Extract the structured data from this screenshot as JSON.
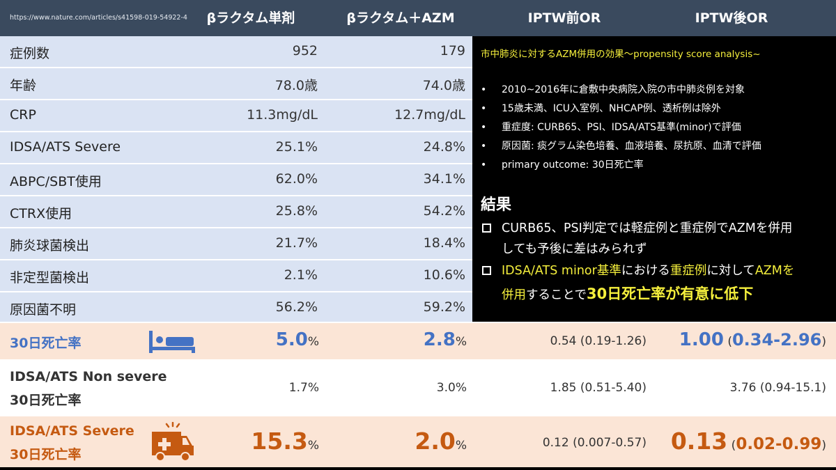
{
  "header": {
    "url": "https://www.nature.com/articles/s41598-019-54922-4",
    "col1": "βラクタム単剤",
    "col2": "βラクタム＋AZM",
    "col3": "IPTW前OR",
    "col4": "IPTW後OR"
  },
  "table_rows": [
    {
      "label": "症例数",
      "mono": "952",
      "combo": "179"
    },
    {
      "label": "年齢",
      "mono": "78.0歳",
      "combo": "74.0歳"
    },
    {
      "label": "CRP",
      "mono": "11.3mg/dL",
      "combo": "12.7mg/dL"
    },
    {
      "label": "IDSA/ATS Severe",
      "mono": "25.1%",
      "combo": "24.8%"
    },
    {
      "label": "ABPC/SBT使用",
      "mono": "62.0%",
      "combo": "34.1%"
    },
    {
      "label": "CTRX使用",
      "mono": "25.8%",
      "combo": "54.2%"
    },
    {
      "label": "肺炎球菌検出",
      "mono": "21.7%",
      "combo": "18.4%"
    },
    {
      "label": "非定型菌検出",
      "mono": "2.1%",
      "combo": "10.6%"
    },
    {
      "label": "原因菌不明",
      "mono": "56.2%",
      "combo": "59.2%"
    }
  ],
  "summary": {
    "title": "市中肺炎に対するAZM併用の効果〜propensity score analysis~",
    "bullets": [
      "2010~2016年に倉敷中央病院入院の市中肺炎例を対象",
      "15歳未満、ICU入室例、NHCAP例、透析例は除外",
      "重症度: CURB65、PSI、IDSA/ATS基準(minor)で評価",
      "原因菌: 痰グラム染色培養、血液培養、尿抗原、血清で評価",
      "primary outcome: 30日死亡率"
    ],
    "result_heading": "結果",
    "r1_a": "CURB65、PSI判定では軽症例と重症例でAZMを併用",
    "r1_b": "しても予後に差はみられず",
    "r2_a1": "IDSA/ATS minor基準",
    "r2_a2": "における",
    "r2_a3": "重症例",
    "r2_a4": "に対して",
    "r2_a5": "AZMを",
    "r2_b1": "併用",
    "r2_b2": "することで",
    "r2_b3": "30日死亡率が有意に低下"
  },
  "outcomes": {
    "row1": {
      "label": "30日死亡率",
      "mono": "5.0",
      "combo": "2.8",
      "pct": "%",
      "or_pre": "0.54 (0.19-1.26)",
      "or_post_main": "1.00",
      "or_post_open": " (",
      "or_post_ci": "0.34-2.96",
      "or_post_close": ")",
      "icon": "hospital-bed-icon"
    },
    "row2": {
      "label_line1": "IDSA/ATS Non severe",
      "label_line2": "30日死亡率",
      "mono": "1.7%",
      "combo": "3.0%",
      "or_pre": "1.85 (0.51-5.40)",
      "or_post": "3.76 (0.94-15.1)"
    },
    "row3": {
      "label_line1": "IDSA/ATS Severe",
      "label_line2": "30日死亡率",
      "mono": "15.3",
      "combo": "2.0",
      "pct": "%",
      "or_pre": "0.12 (0.007-0.57)",
      "or_post_main": "0.13",
      "or_post_open": " (",
      "or_post_ci": "0.02-0.99",
      "or_post_close": ")",
      "icon": "ambulance-icon"
    }
  },
  "colors": {
    "header_bg": "#3a4a5e",
    "table_bg": "#dae3f3",
    "summary_bg": "#000000",
    "highlight_yellow": "#f5ef3c",
    "outcome_bg": "#fbe5d6",
    "blue_accent": "#4472c4",
    "orange_accent": "#c55a11"
  }
}
